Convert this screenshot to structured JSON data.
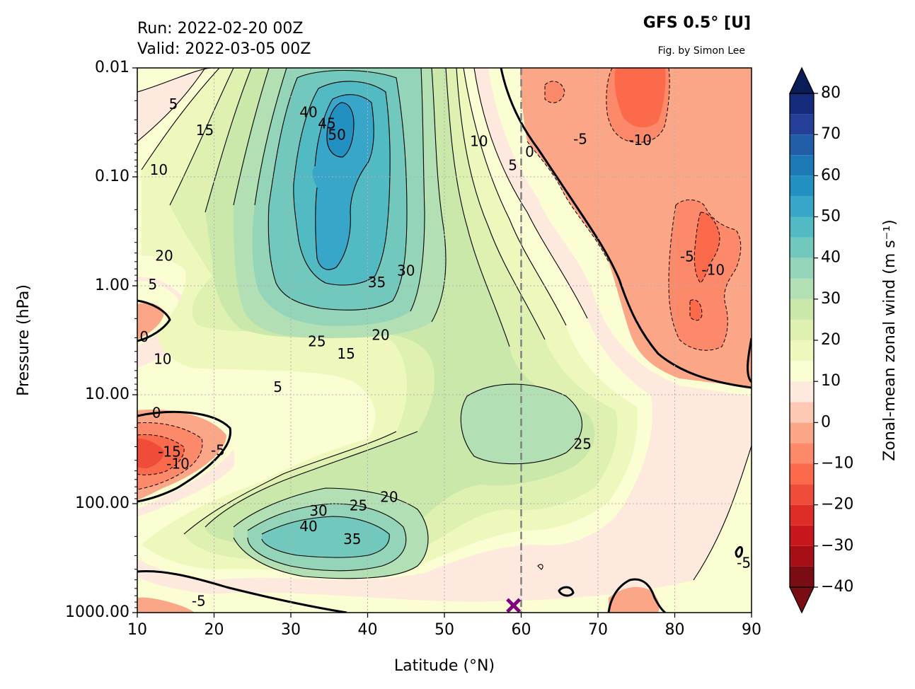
{
  "header": {
    "run_label": "Run: 2022-02-20 00Z",
    "valid_label": "Valid: 2022-03-05 00Z",
    "title": "GFS 0.5° [U]",
    "credit": "Fig. by Simon Lee"
  },
  "chart_data": {
    "type": "contour",
    "xlabel": "Latitude (°N)",
    "ylabel": "Pressure (hPa)",
    "xlim": [
      10,
      90
    ],
    "ylim": [
      1000,
      0.01
    ],
    "yscale": "log",
    "xticks": [
      "10",
      "20",
      "30",
      "40",
      "50",
      "60",
      "70",
      "80",
      "90"
    ],
    "yticks": [
      "0.01",
      "0.10",
      "1.00",
      "10.00",
      "100.00",
      "1000.00"
    ],
    "grid": true,
    "reference_line": {
      "x": 60,
      "style": "dashed",
      "color": "#808080"
    },
    "marker": {
      "x": 59,
      "y": 1000,
      "symbol": "x",
      "color": "#800080"
    },
    "colorbar": {
      "label": "Zonal-mean zonal wind (m s⁻¹)",
      "ticks": [
        "80",
        "70",
        "60",
        "50",
        "40",
        "30",
        "20",
        "10",
        "0",
        "−10",
        "−20",
        "−30",
        "−40"
      ],
      "levels": [
        -40,
        -35,
        -30,
        -25,
        -20,
        -15,
        -10,
        -5,
        0,
        5,
        10,
        15,
        20,
        25,
        30,
        35,
        40,
        45,
        50,
        55,
        60,
        65,
        70,
        75,
        80
      ],
      "colors": [
        "#7a0d13",
        "#a50f15",
        "#c8171c",
        "#de2d26",
        "#ef4c3a",
        "#fb6a4a",
        "#fc8a6a",
        "#fca688",
        "#fdc9b4",
        "#fee9df",
        "#fbfdd3",
        "#eef8bd",
        "#dff1b0",
        "#cbe8ab",
        "#b2dfb3",
        "#94d4b9",
        "#72c8bd",
        "#52bac2",
        "#37a6c8",
        "#2290c1",
        "#1d79b5",
        "#225ea8",
        "#253e97",
        "#152a7a",
        "#0b1d58"
      ],
      "extend": "both"
    },
    "contour_labels": [
      {
        "text": "5",
        "x": 14.7,
        "y": 0.022
      },
      {
        "text": "15",
        "x": 18.8,
        "y": 0.038
      },
      {
        "text": "10",
        "x": 12.8,
        "y": 0.088
      },
      {
        "text": "40",
        "x": 32.3,
        "y": 0.026
      },
      {
        "text": "45",
        "x": 34.7,
        "y": 0.033
      },
      {
        "text": "50",
        "x": 36.0,
        "y": 0.042
      },
      {
        "text": "10",
        "x": 54.5,
        "y": 0.048
      },
      {
        "text": "0",
        "x": 61.1,
        "y": 0.06
      },
      {
        "text": "5",
        "x": 58.9,
        "y": 0.08
      },
      {
        "text": "-5",
        "x": 67.7,
        "y": 0.046
      },
      {
        "text": "-10",
        "x": 75.5,
        "y": 0.047
      },
      {
        "text": "-5",
        "x": 81.6,
        "y": 0.55
      },
      {
        "text": "-10",
        "x": 85.0,
        "y": 0.73
      },
      {
        "text": "20",
        "x": 13.5,
        "y": 0.54
      },
      {
        "text": "30",
        "x": 45.0,
        "y": 0.74
      },
      {
        "text": "35",
        "x": 41.2,
        "y": 0.95
      },
      {
        "text": "5",
        "x": 12.0,
        "y": 0.99
      },
      {
        "text": "0",
        "x": 10.9,
        "y": 3.0
      },
      {
        "text": "25",
        "x": 33.4,
        "y": 3.3
      },
      {
        "text": "20",
        "x": 41.7,
        "y": 2.9
      },
      {
        "text": "15",
        "x": 37.2,
        "y": 4.3
      },
      {
        "text": "10",
        "x": 13.3,
        "y": 4.8
      },
      {
        "text": "5",
        "x": 28.3,
        "y": 8.7
      },
      {
        "text": "0",
        "x": 12.5,
        "y": 15.0
      },
      {
        "text": "25",
        "x": 68.0,
        "y": 29.0
      },
      {
        "text": "-15",
        "x": 14.2,
        "y": 34.0
      },
      {
        "text": "-5",
        "x": 20.5,
        "y": 33.0
      },
      {
        "text": "-10",
        "x": 15.3,
        "y": 44.0
      },
      {
        "text": "20",
        "x": 42.8,
        "y": 89.0
      },
      {
        "text": "25",
        "x": 38.8,
        "y": 106.0
      },
      {
        "text": "30",
        "x": 33.6,
        "y": 119.0
      },
      {
        "text": "40",
        "x": 32.3,
        "y": 165.0
      },
      {
        "text": "35",
        "x": 38.0,
        "y": 216.0
      },
      {
        "text": "-5",
        "x": 89.0,
        "y": 357.0
      },
      {
        "text": "-5",
        "x": 18.0,
        "y": 800.0
      }
    ]
  }
}
